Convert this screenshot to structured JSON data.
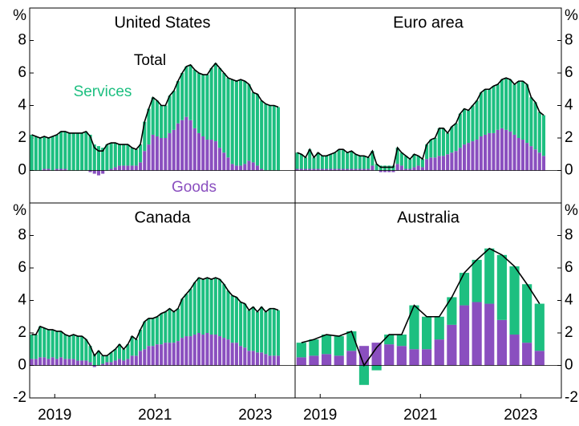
{
  "chart_data": [
    {
      "type": "bar",
      "stacked": true,
      "title": "United States",
      "y_label": "%",
      "ylim": [
        -2,
        10
      ],
      "yticks": [
        0,
        2,
        4,
        6,
        8
      ],
      "categories": [
        null,
        null,
        null,
        null,
        null,
        null,
        null,
        null,
        null,
        null,
        null,
        null,
        null,
        null,
        null,
        null,
        null,
        null,
        null,
        null,
        null,
        null,
        null,
        null,
        null,
        null,
        null,
        null,
        null,
        null,
        null,
        null,
        null,
        null,
        null,
        null,
        null,
        null,
        null,
        null,
        null,
        null,
        null,
        null,
        null,
        null,
        null,
        null,
        null,
        null,
        null,
        null,
        null,
        null,
        null,
        null,
        null,
        null,
        null,
        null
      ],
      "series": [
        {
          "name": "Goods",
          "color": "#8a4fbf",
          "values": [
            0,
            0,
            0,
            0.1,
            0.1,
            0,
            0.1,
            0.1,
            0.1,
            0,
            0,
            0,
            0,
            0,
            -0.1,
            -0.2,
            -0.3,
            -0.2,
            0,
            0.1,
            0.2,
            0.3,
            0.3,
            0.3,
            0.3,
            0.3,
            0.5,
            1.2,
            1.6,
            2.2,
            2.1,
            2,
            2,
            2.3,
            2.5,
            2.9,
            3.1,
            3.3,
            3.1,
            2.6,
            2.3,
            2.1,
            1.9,
            1.9,
            1.8,
            1.4,
            1.1,
            0.8,
            0.4,
            0.3,
            0.3,
            0.4,
            0.6,
            0.5,
            0.3,
            0.1,
            0,
            0,
            0,
            0
          ]
        },
        {
          "name": "Services",
          "color": "#1dbf80",
          "values": [
            2.2,
            2.1,
            2,
            2,
            1.9,
            2.1,
            2.1,
            2.3,
            2.3,
            2.3,
            2.3,
            2.3,
            2.3,
            2.4,
            2.2,
            1.6,
            1.5,
            1.4,
            1.6,
            1.6,
            1.5,
            1.3,
            1.3,
            1.3,
            1.1,
            1,
            1.1,
            1.8,
            2.2,
            2.3,
            2.2,
            2,
            2,
            2.3,
            2.4,
            2.6,
            2.9,
            3.1,
            3.4,
            3.6,
            3.7,
            3.8,
            4,
            4.4,
            4.8,
            4.9,
            4.9,
            4.9,
            5.2,
            5.2,
            5.3,
            5.1,
            4.7,
            4.3,
            4.4,
            4.2,
            4.1,
            4,
            4,
            3.9
          ]
        },
        {
          "name": "Total",
          "type": "line",
          "color": "#000000",
          "values": [
            2.2,
            2.1,
            2,
            2.1,
            2,
            2.1,
            2.2,
            2.4,
            2.4,
            2.3,
            2.3,
            2.3,
            2.3,
            2.4,
            2.1,
            1.4,
            1.2,
            1.2,
            1.6,
            1.7,
            1.7,
            1.6,
            1.6,
            1.6,
            1.4,
            1.3,
            1.6,
            3,
            3.8,
            4.5,
            4.3,
            4,
            4,
            4.6,
            4.9,
            5.5,
            6,
            6.4,
            6.5,
            6.2,
            6,
            5.9,
            5.9,
            6.3,
            6.6,
            6.3,
            6,
            5.7,
            5.6,
            5.5,
            5.6,
            5.5,
            5.3,
            4.8,
            4.7,
            4.3,
            4.1,
            4,
            4,
            3.9
          ]
        }
      ]
    },
    {
      "type": "bar",
      "stacked": true,
      "title": "Euro area",
      "y_label": "%",
      "ylim": [
        -2,
        10
      ],
      "yticks": [
        0,
        2,
        4,
        6,
        8
      ],
      "categories": [
        null,
        null,
        null,
        null,
        null,
        null,
        null,
        null,
        null,
        null,
        null,
        null,
        null,
        null,
        null,
        null,
        null,
        null,
        null,
        null,
        null,
        null,
        null,
        null,
        null,
        null,
        null,
        null,
        null,
        null,
        null,
        null,
        null,
        null,
        null,
        null,
        null,
        null,
        null,
        null,
        null,
        null,
        null,
        null,
        null,
        null,
        null,
        null,
        null,
        null,
        null,
        null,
        null,
        null,
        null,
        null,
        null,
        null,
        null,
        null
      ],
      "series": [
        {
          "color": "#8a4fbf",
          "values": [
            0.1,
            0.1,
            0.1,
            0.1,
            0.1,
            0.1,
            0.1,
            0.1,
            0.1,
            0.1,
            0.1,
            0.1,
            0.1,
            0.1,
            0.1,
            0.1,
            0.1,
            0.1,
            0.3,
            0,
            -0.1,
            -0.1,
            -0.1,
            -0.1,
            0.4,
            0.3,
            0.1,
            0.1,
            0.2,
            0.3,
            0.2,
            0.7,
            0.8,
            0.8,
            0.9,
            0.9,
            1,
            1.1,
            1.2,
            1.4,
            1.6,
            1.7,
            1.8,
            1.9,
            2.1,
            2.2,
            2.3,
            2.3,
            2.5,
            2.6,
            2.5,
            2.4,
            2.2,
            2,
            1.9,
            1.7,
            1.5,
            1.3,
            1.1,
            0.9
          ]
        },
        {
          "color": "#1dbf80",
          "values": [
            1,
            0.9,
            0.7,
            1.2,
            0.7,
            1,
            0.8,
            0.8,
            0.9,
            1,
            1.2,
            1.2,
            1,
            1.1,
            0.9,
            0.8,
            0.8,
            0.7,
            0.9,
            0.4,
            0.3,
            0.3,
            0.3,
            0.3,
            1,
            0.8,
            0.8,
            0.6,
            0.8,
            0.6,
            0.5,
            0.9,
            1.1,
            1.2,
            1.7,
            1.7,
            1.3,
            1.6,
            1.7,
            2.1,
            2.2,
            2,
            2.2,
            2.4,
            2.7,
            2.8,
            2.7,
            2.9,
            2.8,
            3,
            3.2,
            3.2,
            3.1,
            3.5,
            3.6,
            3.6,
            3,
            2.9,
            2.5,
            2.5
          ]
        },
        {
          "type": "line",
          "color": "#000000",
          "values": [
            1.1,
            1,
            0.8,
            1.3,
            0.8,
            1.1,
            0.9,
            0.9,
            1,
            1.1,
            1.3,
            1.3,
            1.1,
            1.2,
            1,
            0.9,
            0.9,
            0.8,
            1.2,
            0.4,
            0.2,
            0.2,
            0.2,
            0.2,
            1.4,
            1.1,
            0.9,
            0.7,
            1,
            0.9,
            0.7,
            1.6,
            1.9,
            2,
            2.6,
            2.6,
            2.3,
            2.7,
            2.9,
            3.5,
            3.8,
            3.7,
            4,
            4.3,
            4.8,
            5,
            5,
            5.2,
            5.3,
            5.6,
            5.7,
            5.6,
            5.3,
            5.5,
            5.5,
            5.3,
            4.5,
            4.2,
            3.6,
            3.4
          ]
        }
      ]
    },
    {
      "type": "bar",
      "stacked": true,
      "title": "Canada",
      "y_label": "%",
      "ylim": [
        -2,
        10
      ],
      "yticks": [
        -2,
        0,
        2,
        4,
        6,
        8
      ],
      "categories": [
        null,
        null,
        null,
        null,
        null,
        null,
        "2019",
        null,
        null,
        null,
        null,
        null,
        null,
        null,
        null,
        null,
        null,
        null,
        null,
        null,
        null,
        null,
        null,
        null,
        null,
        null,
        null,
        null,
        null,
        null,
        "2021",
        null,
        null,
        null,
        null,
        null,
        null,
        null,
        null,
        null,
        null,
        null,
        null,
        null,
        null,
        null,
        null,
        null,
        null,
        null,
        null,
        null,
        null,
        null,
        "2023",
        null,
        null,
        null,
        null,
        null
      ],
      "series": [
        {
          "color": "#8a4fbf",
          "values": [
            0.4,
            0.4,
            0.5,
            0.5,
            0.4,
            0.5,
            0.4,
            0.5,
            0.4,
            0.4,
            0.4,
            0.3,
            0.3,
            0.3,
            0.2,
            -0.1,
            0,
            0.1,
            0.2,
            0.2,
            0.3,
            0.4,
            0.3,
            0.4,
            0.6,
            0.6,
            0.9,
            1,
            1.2,
            1.2,
            1.3,
            1.3,
            1.4,
            1.4,
            1.4,
            1.5,
            1.7,
            1.8,
            1.8,
            1.9,
            2,
            1.9,
            2,
            1.9,
            1.9,
            1.8,
            1.7,
            1.6,
            1.4,
            1.4,
            1.2,
            1.1,
            0.9,
            0.9,
            0.8,
            0.8,
            0.7,
            0.6,
            0.6,
            0.6
          ]
        },
        {
          "color": "#1dbf80",
          "values": [
            1.5,
            1.5,
            1.9,
            1.8,
            1.8,
            1.7,
            1.7,
            1.6,
            1.5,
            1.4,
            1.5,
            1.5,
            1.5,
            1.3,
            1,
            0.7,
            0.9,
            0.5,
            0.4,
            0.6,
            0.7,
            0.9,
            0.7,
            0.9,
            1.2,
            1,
            1.3,
            1.7,
            1.7,
            1.7,
            1.7,
            1.9,
            1.9,
            2.1,
            1.9,
            2,
            2.4,
            2.6,
            2.9,
            3.2,
            3.4,
            3.4,
            3.4,
            3.4,
            3.5,
            3.5,
            3.3,
            3,
            2.9,
            2.8,
            2.7,
            2.7,
            2.5,
            2.7,
            2.5,
            2.8,
            2.6,
            2.9,
            2.9,
            2.8
          ]
        },
        {
          "type": "line",
          "color": "#000000",
          "values": [
            1.9,
            1.9,
            2.4,
            2.3,
            2.2,
            2.2,
            2.1,
            2.1,
            1.9,
            1.8,
            1.9,
            1.8,
            1.8,
            1.6,
            1.2,
            0.6,
            0.9,
            0.6,
            0.6,
            0.8,
            1,
            1.3,
            1,
            1.3,
            1.8,
            1.6,
            2.2,
            2.7,
            2.9,
            2.9,
            3,
            3.2,
            3.3,
            3.5,
            3.3,
            3.5,
            4.1,
            4.4,
            4.7,
            5.1,
            5.4,
            5.3,
            5.4,
            5.3,
            5.4,
            5.3,
            5,
            4.6,
            4.3,
            4.2,
            3.9,
            3.8,
            3.4,
            3.6,
            3.3,
            3.6,
            3.3,
            3.5,
            3.5,
            3.4
          ]
        }
      ]
    },
    {
      "type": "bar",
      "stacked": true,
      "title": "Australia",
      "y_label": "%",
      "ylim": [
        -2,
        10
      ],
      "yticks": [
        -2,
        0,
        2,
        4,
        6,
        8
      ],
      "categories": [
        null,
        null,
        "2019",
        null,
        null,
        null,
        null,
        null,
        null,
        null,
        "2021",
        null,
        null,
        null,
        null,
        null,
        null,
        null,
        "2023",
        null
      ],
      "series": [
        {
          "color": "#8a4fbf",
          "values": [
            0.5,
            0.6,
            0.7,
            0.6,
            0.9,
            1.2,
            1.4,
            1.3,
            1.2,
            1,
            1,
            1.6,
            2.5,
            3.7,
            3.9,
            3.8,
            2.8,
            1.9,
            1.4,
            0.9
          ]
        },
        {
          "color": "#1dbf80",
          "values": [
            0.9,
            1,
            1.2,
            1.2,
            1.2,
            -1.2,
            -0.3,
            0.6,
            0.7,
            2.7,
            2,
            1.4,
            1.7,
            2,
            2.6,
            3.4,
            4,
            4.2,
            3.6,
            2.9
          ]
        },
        {
          "type": "line",
          "color": "#000000",
          "values": [
            1.4,
            1.6,
            1.9,
            1.8,
            2.1,
            0,
            1.1,
            1.9,
            1.9,
            3.7,
            3,
            3,
            4.2,
            5.7,
            6.5,
            7.2,
            6.8,
            6.1,
            5,
            3.8
          ]
        }
      ]
    }
  ]
}
